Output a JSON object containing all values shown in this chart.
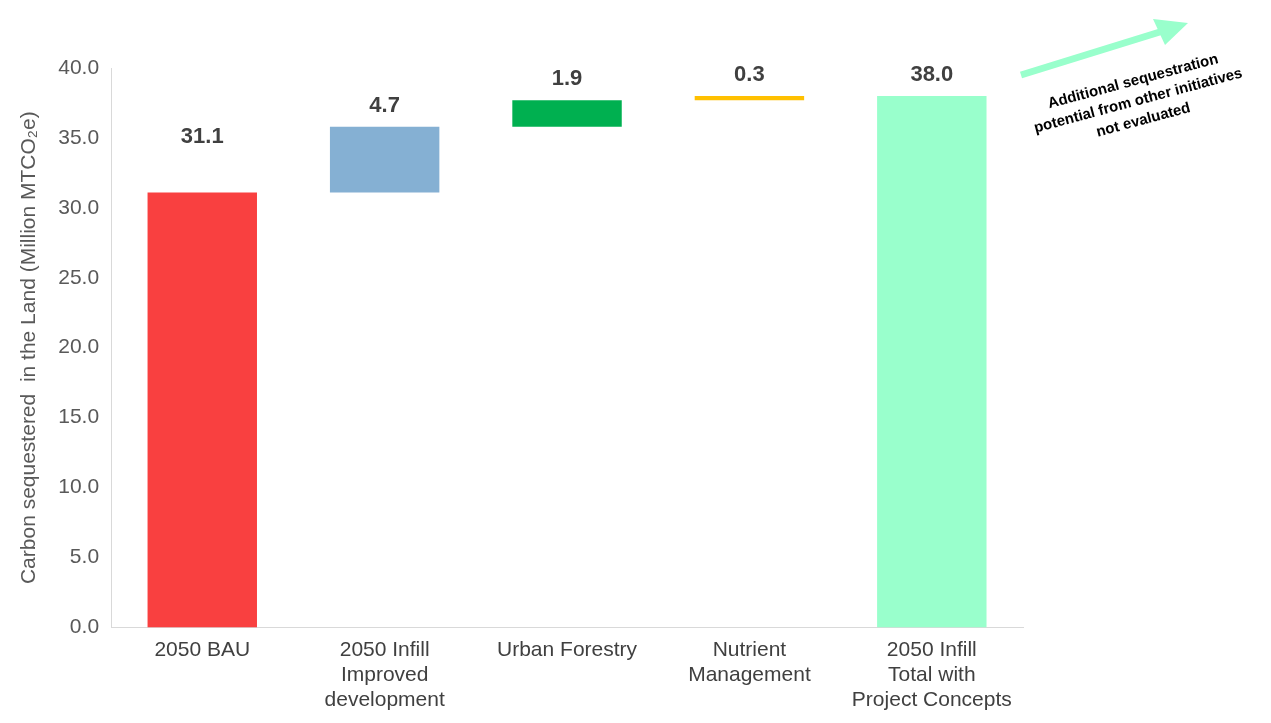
{
  "chart_data": {
    "type": "bar",
    "ylabel": "Carbon sequestered  in the Land (Million MTCO₂e)",
    "categories": [
      "2050 BAU",
      "2050 Infill Improved development",
      "Urban Forestry",
      "Nutrient Management",
      "2050 Infill Total with Project Concepts"
    ],
    "values": [
      31.1,
      4.7,
      1.9,
      0.3,
      38.0
    ],
    "base": [
      0,
      31.1,
      35.8,
      37.7,
      0
    ],
    "colors": [
      "#f94040",
      "#85b0d3",
      "#00b050",
      "#ffc000",
      "#99ffcc"
    ],
    "value_labels": [
      "31.1",
      "4.7",
      "1.9",
      "0.3",
      "38.0"
    ],
    "ylim": [
      0,
      40
    ],
    "yticks": [
      {
        "value": 0,
        "label": "0.0"
      },
      {
        "value": 5,
        "label": "5.0"
      },
      {
        "value": 10,
        "label": "10.0"
      },
      {
        "value": 15,
        "label": "15.0"
      },
      {
        "value": 20,
        "label": "20.0"
      },
      {
        "value": 25,
        "label": "25.0"
      },
      {
        "value": 30,
        "label": "30.0"
      },
      {
        "value": 35,
        "label": "35.0"
      },
      {
        "value": 40,
        "label": "40.0"
      }
    ],
    "grid": false,
    "legend": false,
    "annotations": [
      "Additional sequestration potential from other initiatives not evaluated"
    ]
  }
}
